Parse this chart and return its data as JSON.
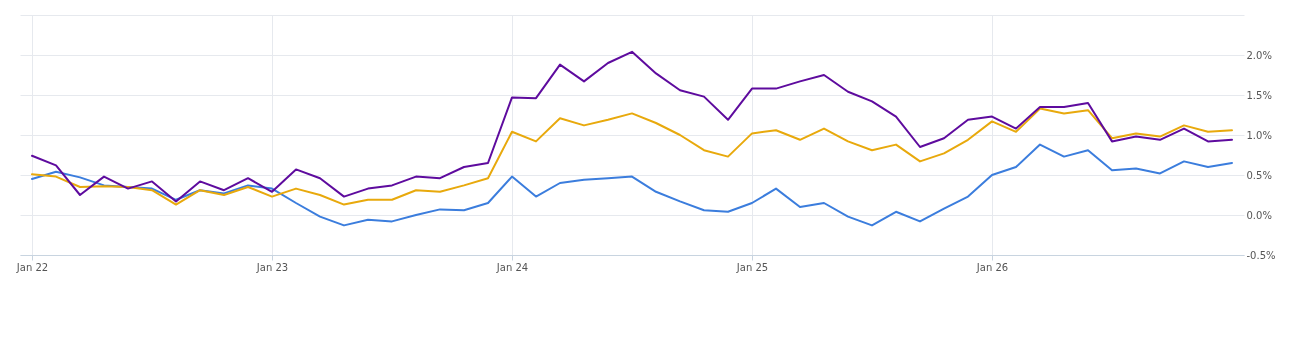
{
  "chart_data": {
    "type": "line",
    "categories": [
      "Jan 22",
      null,
      null,
      null,
      null,
      null,
      null,
      null,
      null,
      null,
      "Jan 23",
      null,
      null,
      null,
      null,
      null,
      null,
      null,
      null,
      null,
      "Jan 24",
      null,
      null,
      null,
      null,
      null,
      null,
      null,
      null,
      null,
      "Jan 25",
      null,
      null,
      null,
      null,
      null,
      null,
      null,
      null,
      null,
      "Jan 26",
      null,
      null,
      null,
      null,
      null,
      null,
      null,
      null,
      null,
      null
    ],
    "series": [
      {
        "color": "#3b7ddd",
        "values": [
          0.45,
          0.54,
          0.47,
          0.37,
          0.35,
          0.33,
          0.19,
          0.31,
          0.27,
          0.37,
          0.33,
          0.15,
          -0.02,
          -0.13,
          -0.06,
          -0.08,
          0.0,
          0.07,
          0.06,
          0.15,
          0.48,
          0.23,
          0.4,
          0.44,
          0.46,
          0.48,
          0.29,
          0.17,
          0.06,
          0.04,
          0.15,
          0.33,
          0.1,
          0.15,
          -0.02,
          -0.13,
          0.04,
          -0.08,
          0.08,
          0.23,
          0.5,
          0.6,
          0.88,
          0.73,
          0.81,
          0.56,
          0.58,
          0.52,
          0.67,
          0.6,
          0.65
        ]
      },
      {
        "color": "#e8a90c",
        "values": [
          0.51,
          0.48,
          0.35,
          0.36,
          0.35,
          0.31,
          0.13,
          0.31,
          0.25,
          0.35,
          0.23,
          0.33,
          0.25,
          0.13,
          0.19,
          0.19,
          0.31,
          0.29,
          0.37,
          0.46,
          1.04,
          0.92,
          1.21,
          1.12,
          1.19,
          1.27,
          1.15,
          1.0,
          0.81,
          0.73,
          1.02,
          1.06,
          0.94,
          1.08,
          0.92,
          0.81,
          0.88,
          0.67,
          0.77,
          0.94,
          1.17,
          1.04,
          1.33,
          1.27,
          1.31,
          0.96,
          1.02,
          0.98,
          1.12,
          1.04,
          1.06
        ]
      },
      {
        "color": "#5e0b9e",
        "values": [
          0.74,
          0.62,
          0.25,
          0.48,
          0.33,
          0.42,
          0.17,
          0.42,
          0.31,
          0.46,
          0.29,
          0.57,
          0.46,
          0.23,
          0.33,
          0.37,
          0.48,
          0.46,
          0.6,
          0.65,
          1.47,
          1.46,
          1.88,
          1.67,
          1.9,
          2.04,
          1.77,
          1.56,
          1.48,
          1.19,
          1.58,
          1.58,
          1.67,
          1.75,
          1.54,
          1.42,
          1.23,
          0.85,
          0.96,
          1.19,
          1.23,
          1.08,
          1.35,
          1.35,
          1.4,
          0.92,
          0.98,
          0.94,
          1.08,
          0.92,
          0.94
        ]
      }
    ],
    "ylim": [
      -0.5,
      2.5
    ],
    "yticks": [
      {
        "value": -0.5,
        "label": "-0.5%"
      },
      {
        "value": 0,
        "label": "0.0%"
      },
      {
        "value": 0.5,
        "label": "0.5%"
      },
      {
        "value": 1.0,
        "label": "1.0%"
      },
      {
        "value": 1.5,
        "label": "1.5%"
      },
      {
        "value": 2.0,
        "label": "2.0%"
      },
      {
        "value": 2.5,
        "label": null
      }
    ],
    "grid": true,
    "legend": false,
    "marker": "none",
    "line_style": "solid"
  }
}
